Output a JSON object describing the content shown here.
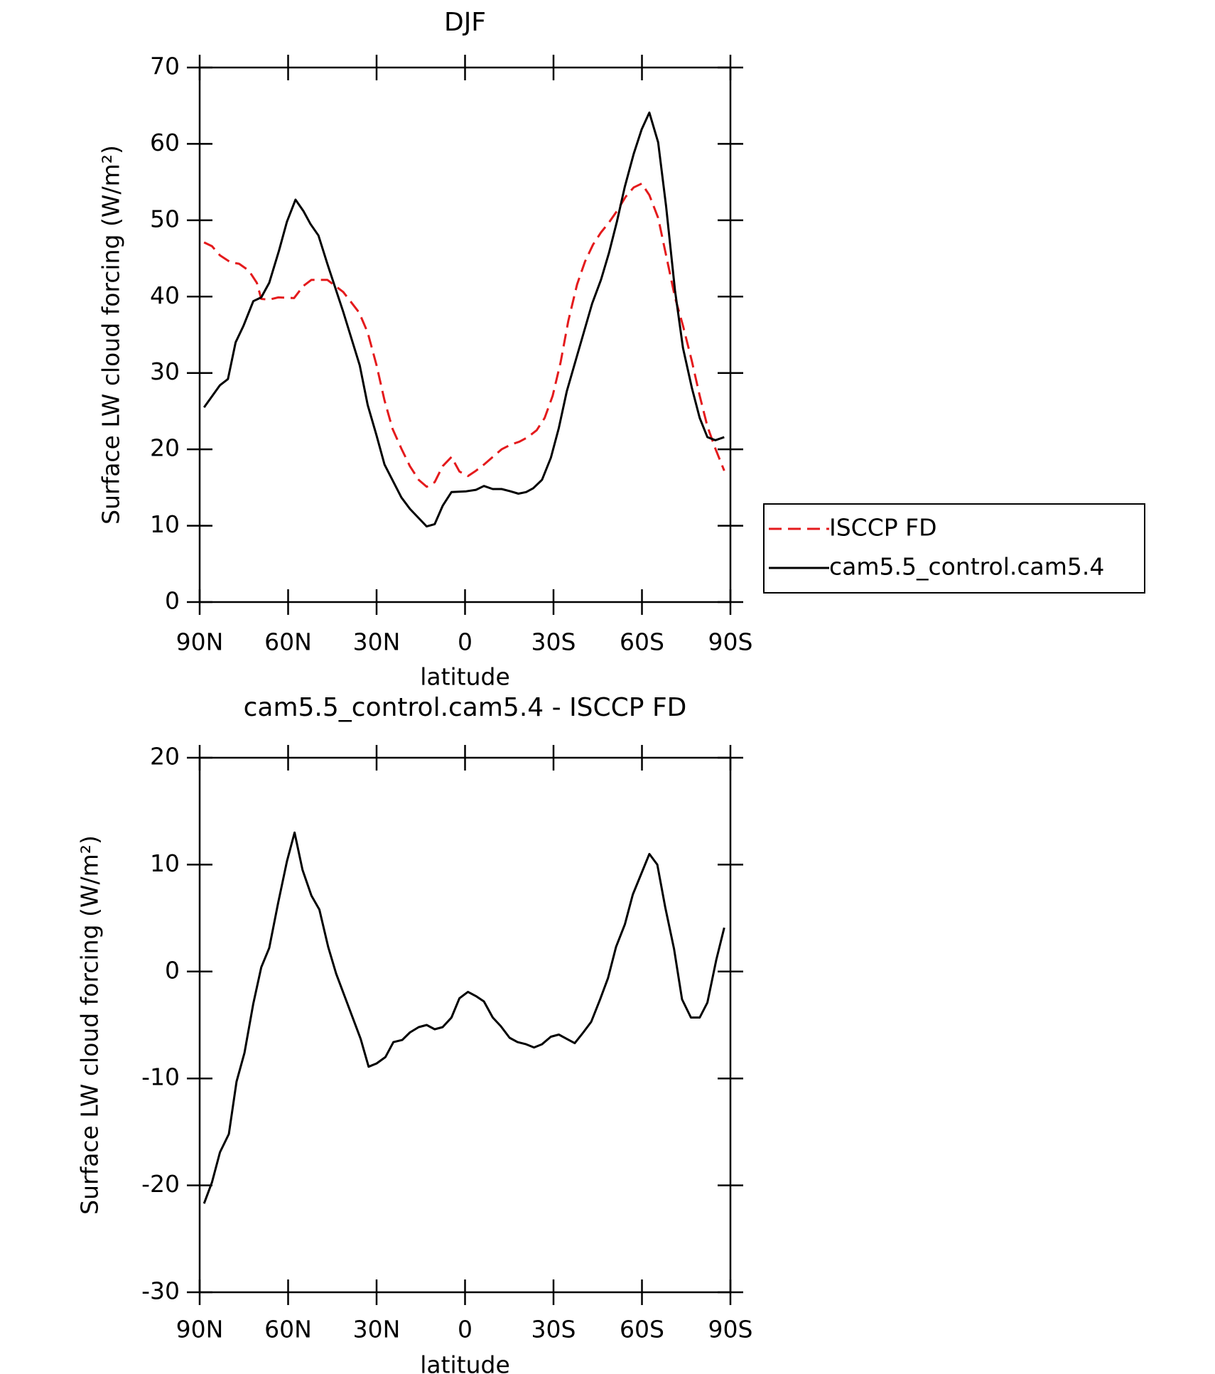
{
  "chart_data": [
    {
      "type": "line",
      "title": "DJF",
      "xlabel": "latitude",
      "ylabel": "Surface LW cloud forcing (W/m²)",
      "xlim": [
        90,
        -90
      ],
      "xticks": [
        {
          "value": 90,
          "label": "90N"
        },
        {
          "value": 60,
          "label": "60N"
        },
        {
          "value": 30,
          "label": "30N"
        },
        0,
        {
          "value": -30,
          "label": "30S"
        },
        {
          "value": -60,
          "label": "60S"
        },
        {
          "value": -90,
          "label": "90S"
        }
      ],
      "ylim": [
        0,
        70
      ],
      "yticks": [
        0,
        10,
        20,
        30,
        40,
        50,
        60,
        70
      ],
      "legend": "right",
      "series": [
        {
          "name": "ISCCP FD",
          "color": "#e41a1c",
          "linestyle": "dashed",
          "x": [
            88.5,
            85.8,
            83.1,
            79.6,
            76.6,
            73.3,
            70.6,
            69.1,
            66.4,
            63.4,
            58,
            54.8,
            52.1,
            46.7,
            41.3,
            35.9,
            33,
            30,
            27.3,
            24.6,
            21.6,
            18.7,
            15.7,
            13,
            10.3,
            7.6,
            4.6,
            1.9,
            -1,
            -3.7,
            -6.4,
            -9.4,
            -12.4,
            -15.4,
            -18.4,
            -21.3,
            -24.3,
            -27,
            -29.7,
            -32.4,
            -35,
            -38,
            -40.7,
            -43.4,
            -46.1,
            -48.8,
            -51.5,
            -54.5,
            -57.2,
            -59.9,
            -62.5,
            -65.5,
            -68.2,
            -71.2,
            -73.9,
            -76.9,
            -79.6,
            -82.2,
            -84.9,
            -87.9
          ],
          "values": [
            47.1,
            46.6,
            45.4,
            44.5,
            44.3,
            43.4,
            41.8,
            39.7,
            39.6,
            39.9,
            39.8,
            41.4,
            42.2,
            42.2,
            40.6,
            37.9,
            35.3,
            31,
            26.4,
            22.7,
            20.1,
            17.8,
            16,
            15.1,
            15.7,
            17.8,
            19,
            17.1,
            16.5,
            17.2,
            18,
            19,
            20,
            20.6,
            21,
            21.6,
            22.5,
            24.1,
            27,
            31.4,
            36.8,
            41.6,
            44.6,
            46.8,
            48.4,
            49.7,
            51.2,
            53.1,
            54.3,
            54.8,
            53.3,
            50.3,
            45.4,
            39.9,
            36.2,
            31.6,
            27,
            23,
            20.1,
            17.2
          ]
        },
        {
          "name": "cam5.5_control.cam5.4",
          "color": "#000000",
          "linestyle": "solid",
          "x": [
            88.5,
            83.1,
            80.4,
            77.8,
            75.1,
            71.8,
            69.1,
            66.4,
            63.1,
            60.4,
            57.5,
            54.8,
            52.4,
            49.7,
            46.7,
            41.3,
            35.7,
            33,
            30,
            27.3,
            21.6,
            18.7,
            13,
            10.3,
            7.6,
            4.6,
            -0.4,
            -3.7,
            -6.4,
            -9.4,
            -12.4,
            -15.4,
            -18.1,
            -20.7,
            -23.1,
            -26.1,
            -29.1,
            -31.8,
            -34.5,
            -37.5,
            -43.1,
            -46.1,
            -48.8,
            -51.5,
            -54.2,
            -57.2,
            -59.9,
            -62.5,
            -65.5,
            -68.2,
            -71.2,
            -73.9,
            -76.9,
            -79.6,
            -82.2,
            -84.9,
            -87.9
          ],
          "values": [
            25.5,
            28.4,
            29.2,
            34,
            36.2,
            39.4,
            39.9,
            41.8,
            46,
            49.8,
            52.7,
            51.2,
            49.5,
            48,
            44.3,
            38,
            31,
            25.8,
            21.8,
            18,
            13.7,
            12.2,
            9.9,
            10.2,
            12.6,
            14.4,
            14.5,
            14.7,
            15.2,
            14.8,
            14.8,
            14.5,
            14.2,
            14.4,
            14.9,
            16,
            18.9,
            22.8,
            27.6,
            31.6,
            39.1,
            42.2,
            45.7,
            49.8,
            54.4,
            58.7,
            61.9,
            64.1,
            60.2,
            51.8,
            40.8,
            33.3,
            28.1,
            24.1,
            21.6,
            21.2,
            21.6
          ]
        }
      ]
    },
    {
      "type": "line",
      "title": "cam5.5_control.cam5.4 - ISCCP FD",
      "xlabel": "latitude",
      "ylabel": "Surface LW cloud forcing (W/m²)",
      "xlim": [
        90,
        -90
      ],
      "xticks": [
        {
          "value": 90,
          "label": "90N"
        },
        {
          "value": 60,
          "label": "60N"
        },
        {
          "value": 30,
          "label": "30N"
        },
        0,
        {
          "value": -30,
          "label": "30S"
        },
        {
          "value": -60,
          "label": "60S"
        },
        {
          "value": -90,
          "label": "90S"
        }
      ],
      "ylim": [
        -30,
        20
      ],
      "yticks": [
        -30,
        -20,
        -10,
        0,
        10,
        20
      ],
      "series": [
        {
          "color": "#000000",
          "linestyle": "solid",
          "x": [
            88.5,
            85.8,
            83.1,
            80.1,
            77.5,
            74.8,
            71.8,
            69.1,
            66.4,
            63.4,
            60.4,
            57.8,
            55.1,
            52.1,
            49.4,
            46.4,
            43.7,
            41,
            35.4,
            32.7,
            30,
            27,
            24.3,
            21.3,
            18.7,
            15.7,
            13,
            10.3,
            7.6,
            4.6,
            1.9,
            -1,
            -3.7,
            -6.4,
            -9.4,
            -12.1,
            -15.1,
            -17.8,
            -20.7,
            -23.4,
            -26.1,
            -29.1,
            -31.8,
            -34.5,
            -37.2,
            -40.1,
            -42.8,
            -45.8,
            -48.5,
            -51.2,
            -54.2,
            -56.9,
            -62.5,
            -65.2,
            -67.9,
            -70.9,
            -73.6,
            -76.6,
            -79.6,
            -82.2,
            -85.2,
            -87.9
          ],
          "values": [
            -21.7,
            -19.7,
            -16.9,
            -15.2,
            -10.3,
            -7.6,
            -3,
            0.4,
            2.2,
            6.4,
            10.3,
            13,
            9.5,
            7.1,
            5.8,
            2.3,
            -0.2,
            -2.2,
            -6.3,
            -8.9,
            -8.6,
            -8,
            -6.6,
            -6.4,
            -5.7,
            -5.2,
            -5,
            -5.4,
            -5.2,
            -4.3,
            -2.5,
            -1.9,
            -2.3,
            -2.8,
            -4.3,
            -5.1,
            -6.2,
            -6.6,
            -6.8,
            -7.1,
            -6.8,
            -6.1,
            -5.9,
            -6.3,
            -6.7,
            -5.7,
            -4.7,
            -2.6,
            -0.6,
            2.3,
            4.4,
            7.2,
            11,
            10,
            6,
            2.1,
            -2.6,
            -4.3,
            -4.3,
            -2.9,
            1.1,
            4.1
          ]
        }
      ]
    }
  ]
}
